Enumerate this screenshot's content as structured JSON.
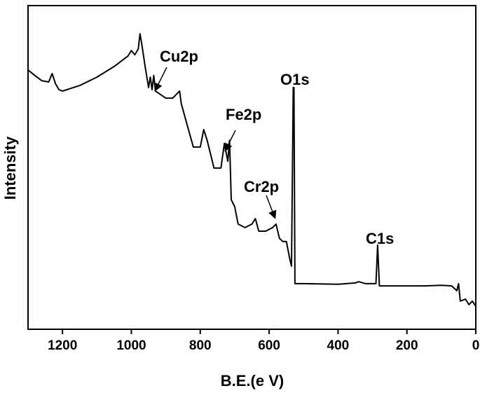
{
  "chart_data": {
    "type": "line",
    "xlabel": "B.E.(e V)",
    "ylabel": "Intensity",
    "x": [
      1300,
      1280,
      1260,
      1240,
      1230,
      1220,
      1210,
      1200,
      1150,
      1100,
      1050,
      1010,
      1000,
      990,
      980,
      975,
      970,
      960,
      950,
      945,
      940,
      935,
      930,
      900,
      880,
      860,
      855,
      840,
      820,
      800,
      790,
      780,
      760,
      740,
      730,
      720,
      715,
      710,
      700,
      690,
      670,
      650,
      640,
      630,
      610,
      590,
      580,
      570,
      560,
      550,
      540,
      535,
      530,
      528,
      525,
      520,
      500,
      400,
      350,
      340,
      320,
      290,
      285,
      280,
      250,
      200,
      150,
      100,
      70,
      55,
      50,
      45,
      30,
      20,
      10,
      0
    ],
    "series": [
      {
        "color": "#000000",
        "values": [
          80.1,
          78.4,
          76.8,
          76.4,
          79.0,
          75.8,
          74.0,
          73.6,
          75.3,
          77.9,
          81.2,
          84.4,
          86.1,
          84.8,
          86.6,
          91.3,
          88.3,
          81.2,
          74.7,
          77.9,
          74.0,
          78.4,
          73.6,
          71.4,
          71.4,
          73.6,
          69.7,
          63.9,
          56.3,
          56.3,
          61.7,
          58.4,
          49.8,
          49.8,
          57.4,
          51.9,
          58.4,
          40.0,
          37.9,
          32.5,
          31.4,
          32.5,
          34.2,
          30.3,
          30.3,
          31.4,
          32.5,
          28.1,
          27.1,
          27.1,
          21.6,
          19.5,
          74.7,
          74.7,
          14.1,
          14.1,
          14.1,
          13.9,
          14.3,
          14.7,
          14.1,
          14.1,
          26.0,
          13.4,
          13.4,
          13.4,
          13.4,
          13.6,
          13.4,
          11.9,
          14.1,
          8.7,
          9.3,
          7.6,
          8.7,
          7.1
        ]
      }
    ],
    "xlim": [
      1300,
      0
    ],
    "xticks": [
      1200,
      1000,
      800,
      600,
      400,
      200,
      0
    ],
    "ylim": [
      0,
      100
    ],
    "annotations": [
      "Cu2p",
      "O1s",
      "Fe2p",
      "Cr2p",
      "C1s"
    ]
  }
}
